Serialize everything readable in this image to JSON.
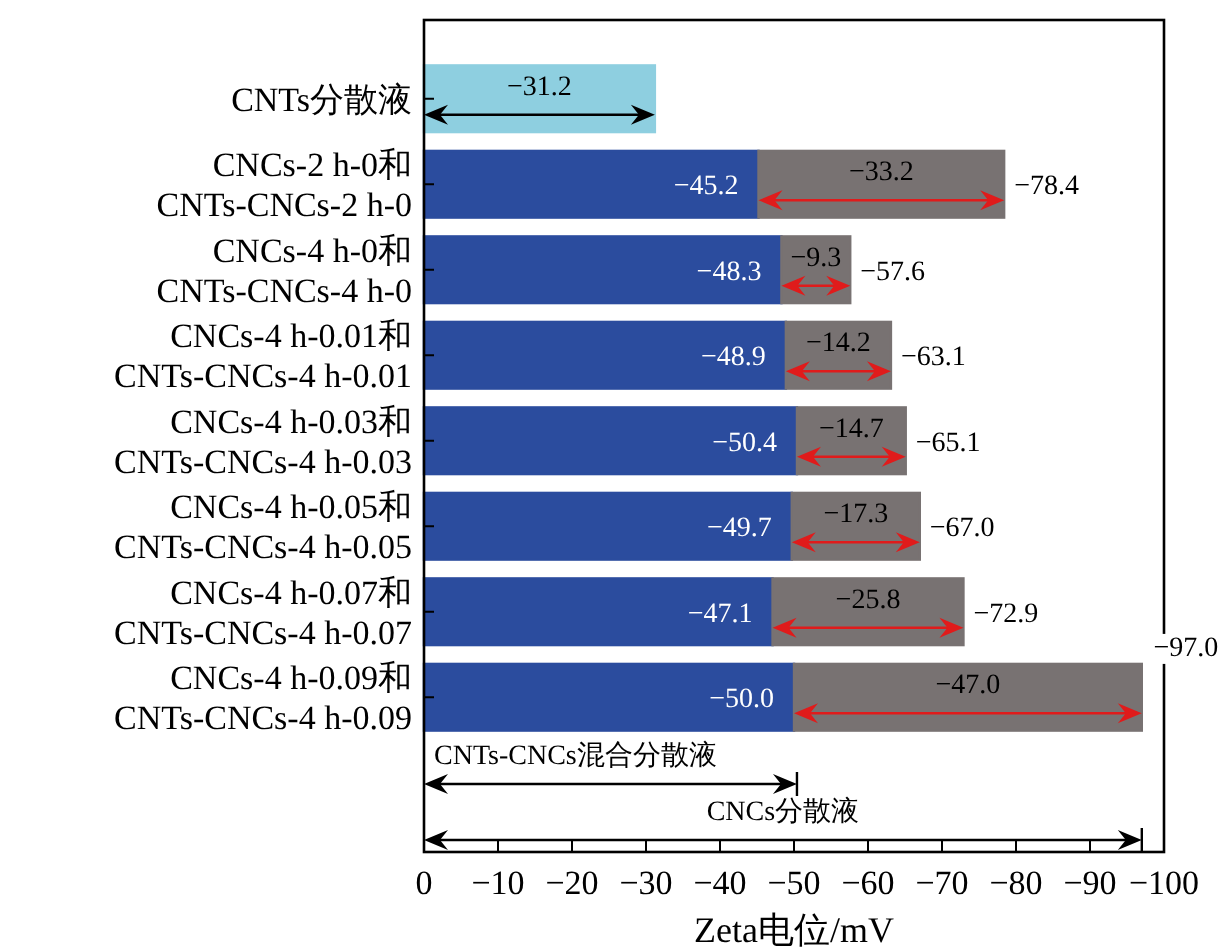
{
  "chart_data": {
    "type": "bar",
    "orientation": "horizontal",
    "stacked": true,
    "xlabel": "Zeta电位/mV",
    "categories": [
      "CNTs分散液",
      "CNCs-2 h-0和\nCNTs-CNCs-2 h-0",
      "CNCs-4 h-0和\nCNTs-CNCs-4 h-0",
      "CNCs-4 h-0.01和\nCNTs-CNCs-4 h-0.01",
      "CNCs-4 h-0.03和\nCNTs-CNCs-4 h-0.03",
      "CNCs-4 h-0.05和\nCNTs-CNCs-4 h-0.05",
      "CNCs-4 h-0.07和\nCNTs-CNCs-4 h-0.07",
      "CNCs-4 h-0.09和\nCNTs-CNCs-4 h-0.09"
    ],
    "series": [
      {
        "colors": [
          "#8ecfe0",
          "#2b4c9e",
          "#2b4c9e",
          "#2b4c9e",
          "#2b4c9e",
          "#2b4c9e",
          "#2b4c9e",
          "#2b4c9e"
        ],
        "values": [
          -31.2,
          -45.2,
          -48.3,
          -48.9,
          -50.4,
          -49.7,
          -47.1,
          -50.0
        ],
        "value_labels": [
          "−31.2",
          "−45.2",
          "−48.3",
          "−48.9",
          "−50.4",
          "−49.7",
          "−47.1",
          "−50.0"
        ]
      },
      {
        "color": "#787272",
        "values": [
          null,
          -33.2,
          -9.3,
          -14.2,
          -14.7,
          -17.3,
          -25.8,
          -47.0
        ],
        "value_labels": [
          null,
          "−33.2",
          "−9.3",
          "−14.2",
          "−14.7",
          "−17.3",
          "−25.8",
          "−47.0"
        ]
      }
    ],
    "totals": [
      null,
      "−78.4",
      "−57.6",
      "−63.1",
      "−65.1",
      "−67.0",
      "−72.9",
      "−97.0"
    ],
    "xlim": [
      0,
      -100
    ],
    "xticks": [
      0,
      -10,
      -20,
      -30,
      -40,
      -50,
      -60,
      -70,
      -80,
      -90,
      -100
    ],
    "annotations": [
      "CNTs-CNCs混合分散液",
      "CNCs分散液"
    ]
  }
}
